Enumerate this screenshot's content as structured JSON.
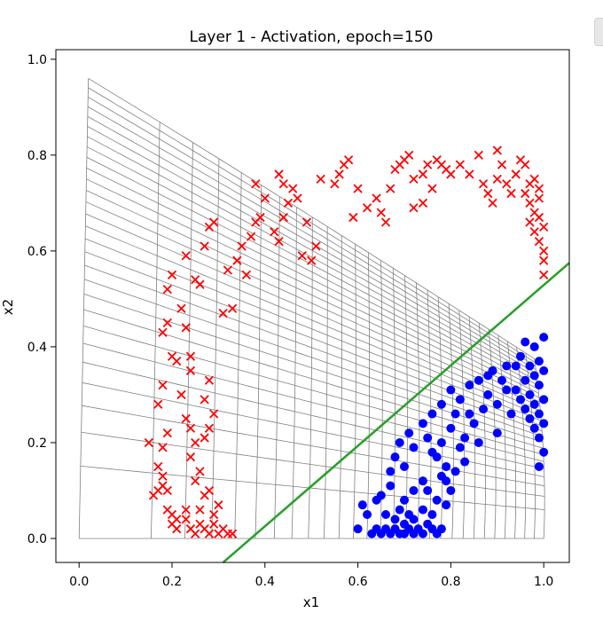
{
  "chart_data": {
    "type": "scatter",
    "title": "Layer 1 - Activation, epoch=150",
    "xlabel": "x1",
    "ylabel": "x2",
    "xlim": [
      -0.05,
      1.055
    ],
    "ylim": [
      -0.05,
      1.02
    ],
    "xticks": [
      "0.0",
      "0.2",
      "0.4",
      "0.6",
      "0.8",
      "1.0"
    ],
    "yticks": [
      "0.0",
      "0.2",
      "0.4",
      "0.6",
      "0.8",
      "1.0"
    ],
    "grid": false,
    "legend": "none",
    "series": [
      {
        "marker": "x",
        "color": "#ff0000",
        "points": [
          [
            0.15,
            0.2
          ],
          [
            0.16,
            0.09
          ],
          [
            0.17,
            0.1
          ],
          [
            0.18,
            0.11
          ],
          [
            0.19,
            0.1
          ],
          [
            0.17,
            0.15
          ],
          [
            0.18,
            0.13
          ],
          [
            0.18,
            0.19
          ],
          [
            0.19,
            0.22
          ],
          [
            0.19,
            0.06
          ],
          [
            0.2,
            0.05
          ],
          [
            0.2,
            0.03
          ],
          [
            0.21,
            0.04
          ],
          [
            0.21,
            0.02
          ],
          [
            0.23,
            0.04
          ],
          [
            0.23,
            0.06
          ],
          [
            0.24,
            0.02
          ],
          [
            0.25,
            0.01
          ],
          [
            0.26,
            0.03
          ],
          [
            0.27,
            0.02
          ],
          [
            0.28,
            0.01
          ],
          [
            0.29,
            0.03
          ],
          [
            0.3,
            0.01
          ],
          [
            0.31,
            0.02
          ],
          [
            0.32,
            0.01
          ],
          [
            0.33,
            0.01
          ],
          [
            0.26,
            0.06
          ],
          [
            0.27,
            0.09
          ],
          [
            0.28,
            0.1
          ],
          [
            0.29,
            0.05
          ],
          [
            0.3,
            0.07
          ],
          [
            0.25,
            0.12
          ],
          [
            0.26,
            0.14
          ],
          [
            0.24,
            0.17
          ],
          [
            0.25,
            0.2
          ],
          [
            0.24,
            0.23
          ],
          [
            0.23,
            0.25
          ],
          [
            0.27,
            0.21
          ],
          [
            0.28,
            0.23
          ],
          [
            0.29,
            0.26
          ],
          [
            0.27,
            0.29
          ],
          [
            0.28,
            0.33
          ],
          [
            0.22,
            0.3
          ],
          [
            0.24,
            0.35
          ],
          [
            0.21,
            0.37
          ],
          [
            0.24,
            0.38
          ],
          [
            0.17,
            0.28
          ],
          [
            0.18,
            0.32
          ],
          [
            0.2,
            0.38
          ],
          [
            0.19,
            0.45
          ],
          [
            0.22,
            0.48
          ],
          [
            0.23,
            0.44
          ],
          [
            0.18,
            0.43
          ],
          [
            0.19,
            0.52
          ],
          [
            0.2,
            0.55
          ],
          [
            0.23,
            0.59
          ],
          [
            0.25,
            0.54
          ],
          [
            0.26,
            0.53
          ],
          [
            0.27,
            0.61
          ],
          [
            0.28,
            0.65
          ],
          [
            0.29,
            0.66
          ],
          [
            0.31,
            0.47
          ],
          [
            0.33,
            0.48
          ],
          [
            0.32,
            0.56
          ],
          [
            0.34,
            0.58
          ],
          [
            0.35,
            0.61
          ],
          [
            0.36,
            0.55
          ],
          [
            0.37,
            0.63
          ],
          [
            0.38,
            0.66
          ],
          [
            0.39,
            0.67
          ],
          [
            0.38,
            0.74
          ],
          [
            0.4,
            0.71
          ],
          [
            0.42,
            0.64
          ],
          [
            0.43,
            0.62
          ],
          [
            0.44,
            0.67
          ],
          [
            0.45,
            0.7
          ],
          [
            0.43,
            0.76
          ],
          [
            0.44,
            0.74
          ],
          [
            0.46,
            0.73
          ],
          [
            0.47,
            0.71
          ],
          [
            0.49,
            0.66
          ],
          [
            0.48,
            0.59
          ],
          [
            0.5,
            0.58
          ],
          [
            0.51,
            0.61
          ],
          [
            0.52,
            0.75
          ],
          [
            0.55,
            0.74
          ],
          [
            0.56,
            0.76
          ],
          [
            0.57,
            0.78
          ],
          [
            0.58,
            0.79
          ],
          [
            0.59,
            0.67
          ],
          [
            0.6,
            0.73
          ],
          [
            0.62,
            0.69
          ],
          [
            0.64,
            0.71
          ],
          [
            0.65,
            0.68
          ],
          [
            0.66,
            0.66
          ],
          [
            0.67,
            0.73
          ],
          [
            0.68,
            0.77
          ],
          [
            0.69,
            0.78
          ],
          [
            0.7,
            0.79
          ],
          [
            0.71,
            0.8
          ],
          [
            0.72,
            0.75
          ],
          [
            0.72,
            0.69
          ],
          [
            0.74,
            0.7
          ],
          [
            0.74,
            0.76
          ],
          [
            0.75,
            0.78
          ],
          [
            0.76,
            0.73
          ],
          [
            0.77,
            0.79
          ],
          [
            0.78,
            0.78
          ],
          [
            0.79,
            0.77
          ],
          [
            0.8,
            0.76
          ],
          [
            0.82,
            0.78
          ],
          [
            0.84,
            0.76
          ],
          [
            0.86,
            0.8
          ],
          [
            0.87,
            0.74
          ],
          [
            0.88,
            0.72
          ],
          [
            0.89,
            0.7
          ],
          [
            0.9,
            0.75
          ],
          [
            0.9,
            0.81
          ],
          [
            0.91,
            0.78
          ],
          [
            0.92,
            0.74
          ],
          [
            0.93,
            0.72
          ],
          [
            0.94,
            0.76
          ],
          [
            0.95,
            0.79
          ],
          [
            0.96,
            0.78
          ],
          [
            0.96,
            0.72
          ],
          [
            0.97,
            0.7
          ],
          [
            0.97,
            0.74
          ],
          [
            0.98,
            0.75
          ],
          [
            0.98,
            0.68
          ],
          [
            0.98,
            0.64
          ],
          [
            0.99,
            0.71
          ],
          [
            0.99,
            0.67
          ],
          [
            0.99,
            0.62
          ],
          [
            1.0,
            0.6
          ],
          [
            1.0,
            0.58
          ],
          [
            1.0,
            0.55
          ],
          [
            1.0,
            0.65
          ],
          [
            0.99,
            0.73
          ],
          [
            0.97,
            0.66
          ]
        ]
      },
      {
        "marker": "o",
        "color": "#0000ff",
        "points": [
          [
            0.6,
            0.02
          ],
          [
            0.61,
            0.07
          ],
          [
            0.62,
            0.05
          ],
          [
            0.63,
            0.01
          ],
          [
            0.64,
            0.08
          ],
          [
            0.64,
            0.02
          ],
          [
            0.65,
            0.01
          ],
          [
            0.65,
            0.09
          ],
          [
            0.66,
            0.05
          ],
          [
            0.66,
            0.02
          ],
          [
            0.67,
            0.11
          ],
          [
            0.67,
            0.01
          ],
          [
            0.68,
            0.04
          ],
          [
            0.68,
            0.02
          ],
          [
            0.69,
            0.06
          ],
          [
            0.69,
            0.01
          ],
          [
            0.7,
            0.03
          ],
          [
            0.7,
            0.01
          ],
          [
            0.71,
            0.05
          ],
          [
            0.71,
            0.02
          ],
          [
            0.72,
            0.01
          ],
          [
            0.72,
            0.04
          ],
          [
            0.73,
            0.02
          ],
          [
            0.74,
            0.06
          ],
          [
            0.74,
            0.01
          ],
          [
            0.75,
            0.03
          ],
          [
            0.75,
            0.1
          ],
          [
            0.76,
            0.02
          ],
          [
            0.76,
            0.05
          ],
          [
            0.77,
            0.01
          ],
          [
            0.77,
            0.08
          ],
          [
            0.78,
            0.13
          ],
          [
            0.78,
            0.02
          ],
          [
            0.79,
            0.07
          ],
          [
            0.79,
            0.12
          ],
          [
            0.8,
            0.1
          ],
          [
            0.81,
            0.14
          ],
          [
            0.67,
            0.14
          ],
          [
            0.68,
            0.17
          ],
          [
            0.69,
            0.2
          ],
          [
            0.7,
            0.15
          ],
          [
            0.71,
            0.22
          ],
          [
            0.72,
            0.19
          ],
          [
            0.74,
            0.24
          ],
          [
            0.75,
            0.21
          ],
          [
            0.76,
            0.26
          ],
          [
            0.77,
            0.17
          ],
          [
            0.78,
            0.28
          ],
          [
            0.79,
            0.15
          ],
          [
            0.8,
            0.31
          ],
          [
            0.81,
            0.26
          ],
          [
            0.82,
            0.29
          ],
          [
            0.83,
            0.21
          ],
          [
            0.83,
            0.16
          ],
          [
            0.84,
            0.32
          ],
          [
            0.85,
            0.24
          ],
          [
            0.86,
            0.33
          ],
          [
            0.87,
            0.27
          ],
          [
            0.88,
            0.3
          ],
          [
            0.89,
            0.35
          ],
          [
            0.9,
            0.28
          ],
          [
            0.91,
            0.33
          ],
          [
            0.92,
            0.31
          ],
          [
            0.93,
            0.26
          ],
          [
            0.94,
            0.36
          ],
          [
            0.95,
            0.38
          ],
          [
            0.95,
            0.29
          ],
          [
            0.96,
            0.41
          ],
          [
            0.96,
            0.33
          ],
          [
            0.97,
            0.3
          ],
          [
            0.97,
            0.25
          ],
          [
            0.97,
            0.36
          ],
          [
            0.98,
            0.4
          ],
          [
            0.98,
            0.34
          ],
          [
            0.98,
            0.28
          ],
          [
            0.98,
            0.23
          ],
          [
            0.99,
            0.37
          ],
          [
            0.99,
            0.32
          ],
          [
            0.99,
            0.26
          ],
          [
            0.99,
            0.21
          ],
          [
            1.0,
            0.35
          ],
          [
            1.0,
            0.29
          ],
          [
            1.0,
            0.24
          ],
          [
            1.0,
            0.18
          ],
          [
            1.0,
            0.42
          ],
          [
            0.99,
            0.15
          ],
          [
            0.96,
            0.27
          ],
          [
            0.94,
            0.31
          ],
          [
            0.92,
            0.36
          ],
          [
            0.9,
            0.22
          ],
          [
            0.88,
            0.34
          ],
          [
            0.86,
            0.2
          ],
          [
            0.84,
            0.26
          ],
          [
            0.82,
            0.19
          ],
          [
            0.8,
            0.23
          ],
          [
            0.78,
            0.2
          ],
          [
            0.76,
            0.18
          ],
          [
            0.74,
            0.12
          ],
          [
            0.72,
            0.1
          ],
          [
            0.7,
            0.08
          ]
        ]
      }
    ],
    "decision_line": {
      "color": "#2ca02c",
      "points": [
        [
          0.31,
          -0.05
        ],
        [
          1.055,
          0.575
        ]
      ]
    },
    "mesh": {
      "color": "#808080"
    }
  }
}
